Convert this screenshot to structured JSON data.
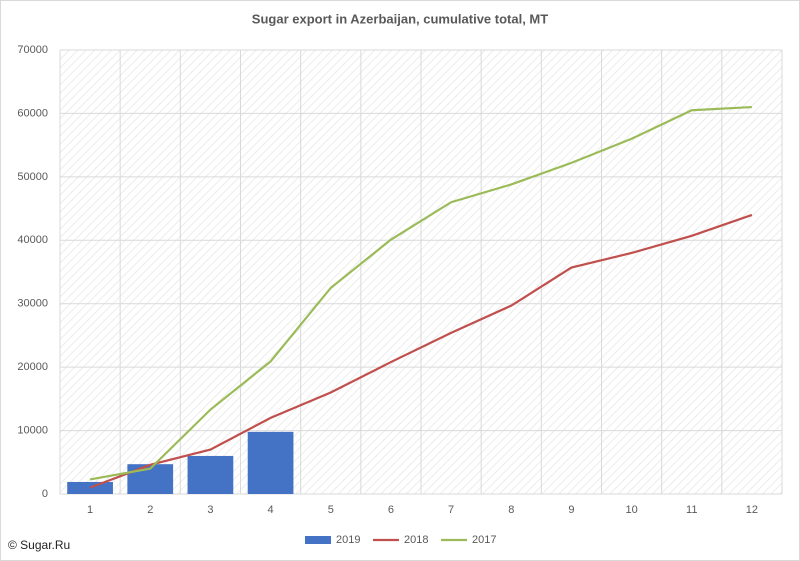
{
  "chart_data": {
    "type": "combo",
    "title": "Sugar export in Azerbaijan, cumulative total, MT",
    "categories": [
      "1",
      "2",
      "3",
      "4",
      "5",
      "6",
      "7",
      "8",
      "9",
      "10",
      "11",
      "12"
    ],
    "series": [
      {
        "name": "2019",
        "type": "bar",
        "color": "#4472c4",
        "values": [
          1900,
          4700,
          6000,
          9800,
          null,
          null,
          null,
          null,
          null,
          null,
          null,
          null
        ]
      },
      {
        "name": "2018",
        "type": "line",
        "color": "#c0504d",
        "values": [
          1000,
          4600,
          7000,
          12000,
          16000,
          20800,
          25400,
          29700,
          35700,
          38000,
          40700,
          44000
        ]
      },
      {
        "name": "2017",
        "type": "line",
        "color": "#9bbb59",
        "values": [
          2300,
          4000,
          13300,
          20900,
          32500,
          40100,
          46000,
          48800,
          52200,
          56000,
          60500,
          61000
        ]
      }
    ],
    "ylim": [
      0,
      70000
    ],
    "yticks": [
      0,
      10000,
      20000,
      30000,
      40000,
      50000,
      60000,
      70000
    ],
    "grid": true,
    "legend": "bottom",
    "source": "© Sugar.Ru"
  }
}
